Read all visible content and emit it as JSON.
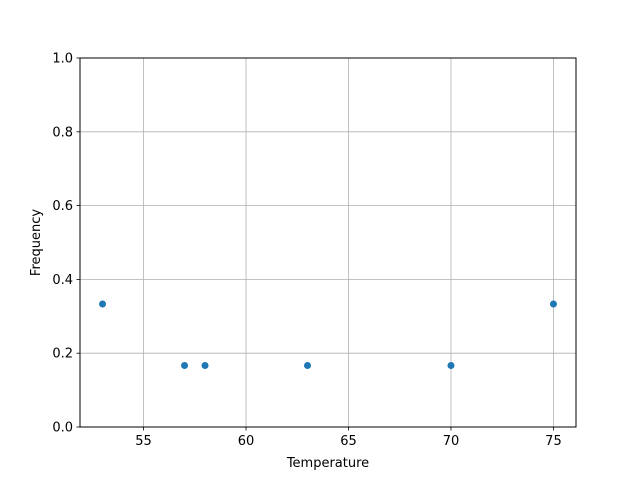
{
  "chart_data": {
    "type": "scatter",
    "title": "",
    "xlabel": "Temperature",
    "ylabel": "Frequency",
    "xlim": [
      51.9,
      76.1
    ],
    "ylim": [
      0.0,
      1.0
    ],
    "xticks": [
      55,
      60,
      65,
      70,
      75
    ],
    "xtick_labels": [
      "55",
      "60",
      "65",
      "70",
      "75"
    ],
    "yticks": [
      0.0,
      0.2,
      0.4,
      0.6,
      0.8,
      1.0
    ],
    "ytick_labels": [
      "0.0",
      "0.2",
      "0.4",
      "0.6",
      "0.8",
      "1.0"
    ],
    "grid": true,
    "x": [
      53,
      57,
      58,
      63,
      70,
      75
    ],
    "y": [
      0.3333,
      0.1667,
      0.1667,
      0.1667,
      0.1667,
      0.3333
    ],
    "marker_color": "#1f77b4",
    "grid_color": "#b0b0b0"
  }
}
